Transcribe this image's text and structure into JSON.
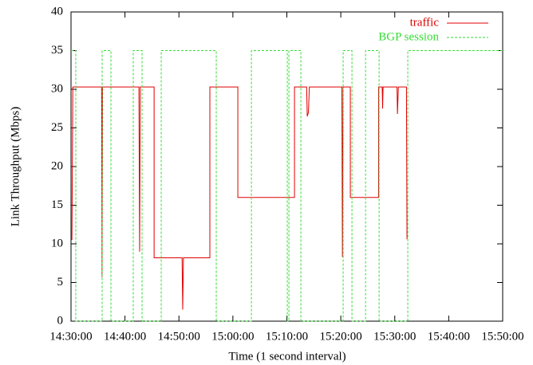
{
  "chart_data": {
    "type": "line",
    "xlabel": "Time (1 second interval)",
    "ylabel": "Link Throughput (Mbps)",
    "xlim": [
      "14:30:00",
      "15:50:00"
    ],
    "xticks": [
      "14:30:00",
      "14:40:00",
      "14:50:00",
      "15:00:00",
      "15:10:00",
      "15:20:00",
      "15:30:00",
      "15:40:00",
      "15:50:00"
    ],
    "ylim": [
      0,
      40
    ],
    "yticks": [
      0,
      5,
      10,
      15,
      20,
      25,
      30,
      35,
      40
    ],
    "legend": "top-right",
    "series": [
      {
        "name": "traffic",
        "color": "#e00000",
        "dash": false,
        "x": [
          "14:30:10",
          "14:30:20",
          "14:35:40",
          "14:35:45",
          "14:35:50",
          "14:42:35",
          "14:42:43",
          "14:42:50",
          "14:45:24",
          "14:45:24",
          "14:50:35",
          "14:50:42",
          "14:50:50",
          "14:55:44",
          "14:55:44",
          "15:00:55",
          "15:00:55",
          "15:11:25",
          "15:11:25",
          "15:13:40",
          "15:13:47",
          "15:14:00",
          "15:14:10",
          "15:20:12",
          "15:20:18",
          "15:20:25",
          "15:21:46",
          "15:21:46",
          "15:27:00",
          "15:27:00",
          "15:27:40",
          "15:27:45",
          "15:27:50",
          "15:30:25",
          "15:30:30",
          "15:30:40",
          "15:32:10",
          "15:32:16"
        ],
        "values": [
          10.5,
          30.3,
          30.3,
          5.7,
          30.3,
          30.3,
          9,
          30.3,
          30.3,
          8.2,
          8.2,
          1.5,
          8.2,
          8.2,
          30.3,
          30.3,
          16,
          16,
          30.3,
          30.3,
          26.5,
          27,
          30.3,
          30.3,
          8.3,
          30.3,
          30.3,
          16,
          16,
          30.3,
          30.3,
          27.5,
          30.3,
          30.3,
          26.8,
          30.3,
          30.3,
          10.6
        ]
      },
      {
        "name": "BGP session",
        "color": "#33dd33",
        "dash": true,
        "x": [
          "14:30:00",
          "14:30:53",
          "14:30:53",
          "14:35:46",
          "14:35:46",
          "14:37:24",
          "14:37:24",
          "14:41:32",
          "14:41:32",
          "14:43:10",
          "14:43:10",
          "14:46:43",
          "14:46:43",
          "14:56:55",
          "14:56:55",
          "15:03:26",
          "15:03:26",
          "15:10:05",
          "15:10:05",
          "15:10:23",
          "15:10:23",
          "15:12:36",
          "15:12:36",
          "15:20:26",
          "15:20:26",
          "15:22:04",
          "15:22:04",
          "15:24:35",
          "15:24:35",
          "15:27:06",
          "15:27:06",
          "15:32:25",
          "15:32:25",
          "15:50:00"
        ],
        "values": [
          35,
          35,
          0,
          0,
          35,
          35,
          0,
          0,
          35,
          35,
          0,
          0,
          35,
          35,
          0,
          0,
          35,
          35,
          0,
          0,
          35,
          35,
          0,
          0,
          35,
          35,
          0,
          0,
          35,
          35,
          0,
          0,
          35,
          35
        ]
      }
    ]
  }
}
